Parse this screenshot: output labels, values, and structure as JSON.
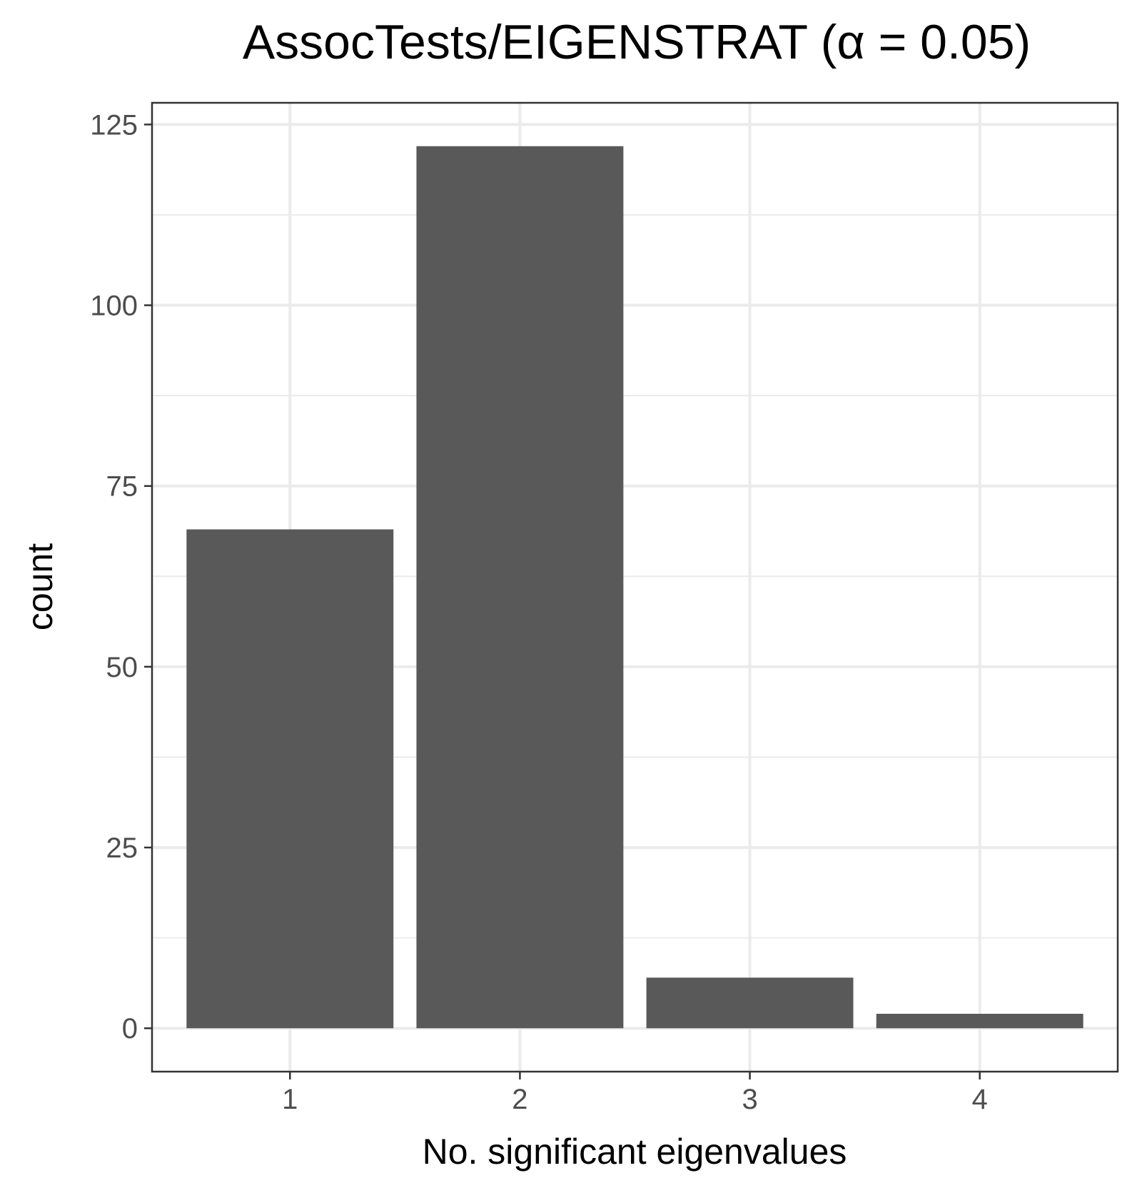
{
  "chart_data": {
    "type": "bar",
    "title": "AssocTests/EIGENSTRAT (α = 0.05)",
    "xlabel": "No. significant eigenvalues",
    "ylabel": "count",
    "categories": [
      "1",
      "2",
      "3",
      "4"
    ],
    "values": [
      69,
      122,
      7,
      2
    ],
    "ylim": [
      -6,
      128
    ],
    "yticks": [
      0,
      25,
      50,
      75,
      100,
      125
    ],
    "ytick_labels": [
      "0",
      "25",
      "50",
      "75",
      "100",
      "125"
    ],
    "grid": true,
    "legend": "none",
    "bar_color": "#595959",
    "grid_color": "#ebebeb",
    "panel_border_color": "#333333"
  }
}
